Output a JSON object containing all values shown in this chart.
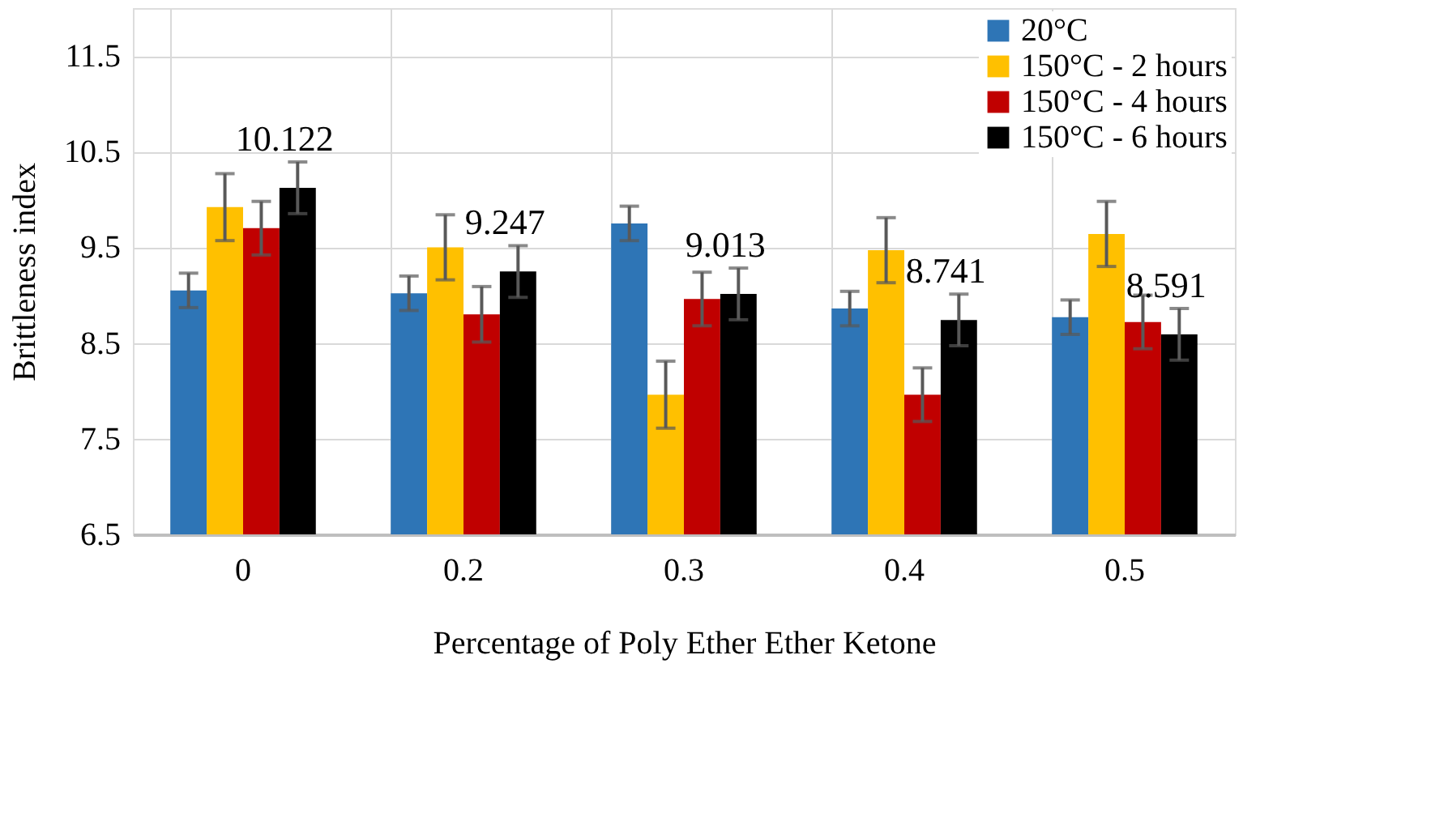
{
  "chart_data": {
    "type": "bar",
    "xlabel": "Percentage of Poly Ether Ether Ketone",
    "ylabel": "Brittleness index",
    "categories": [
      "0",
      "0.2",
      "0.3",
      "0.4",
      "0.5"
    ],
    "ylim": [
      6.5,
      12
    ],
    "yticks": [
      6.5,
      7.5,
      8.5,
      9.5,
      10.5,
      11.5
    ],
    "grid": true,
    "legend": "top right",
    "series": [
      {
        "name": "20°C",
        "color": "#2e75b6",
        "values": [
          9.05,
          9.02,
          9.75,
          8.86,
          8.77
        ],
        "errors": [
          0.18,
          0.18,
          0.18,
          0.18,
          0.18
        ]
      },
      {
        "name": "150°C - 2 hours",
        "color": "#ffc000",
        "values": [
          9.92,
          9.5,
          7.96,
          9.47,
          9.64
        ],
        "errors": [
          0.35,
          0.34,
          0.35,
          0.34,
          0.34
        ]
      },
      {
        "name": "150°C - 4 hours",
        "color": "#c00000",
        "values": [
          9.7,
          8.8,
          8.96,
          7.96,
          8.72
        ],
        "errors": [
          0.28,
          0.29,
          0.28,
          0.28,
          0.28
        ]
      },
      {
        "name": "150°C - 6 hours",
        "color": "#000000",
        "values": [
          10.122,
          9.247,
          9.013,
          8.741,
          8.591
        ],
        "errors": [
          0.27,
          0.27,
          0.27,
          0.27,
          0.27
        ],
        "value_labels": [
          "10.122",
          "9.247",
          "9.013",
          "8.741",
          "8.591"
        ]
      }
    ]
  }
}
